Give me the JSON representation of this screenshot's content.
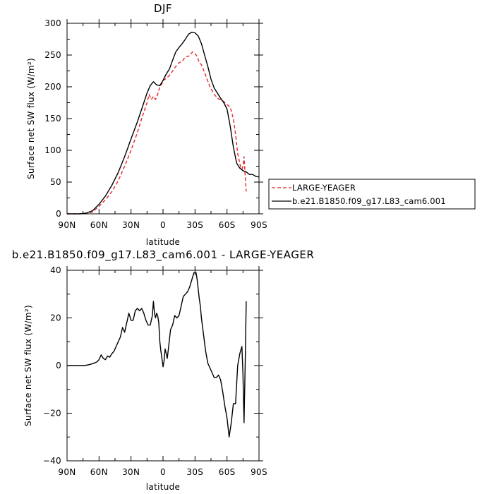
{
  "chart_data": [
    {
      "type": "line",
      "title": "DJF",
      "xlabel": "latitude",
      "ylabel": "Surface net SW flux (W/m²)",
      "xlim": [
        90,
        -90
      ],
      "ylim": [
        0,
        300
      ],
      "x_ticks": [
        90,
        60,
        30,
        0,
        -30,
        -60,
        -90
      ],
      "x_tick_labels": [
        "90N",
        "60N",
        "30N",
        "0",
        "30S",
        "60S",
        "90S"
      ],
      "y_ticks": [
        0,
        50,
        100,
        150,
        200,
        250,
        300
      ],
      "y_tick_labels": [
        "0",
        "50",
        "100",
        "150",
        "200",
        "250",
        "300"
      ],
      "legend": "right",
      "series": [
        {
          "name": "LARGE-YEAGER",
          "color": "#e8272a",
          "style": "dashed",
          "x": [
            90,
            84,
            78,
            72,
            66,
            60,
            54,
            48,
            42,
            36,
            30,
            24,
            20,
            18,
            15,
            13,
            11,
            9,
            7,
            5,
            3,
            1,
            0,
            -3,
            -6,
            -9,
            -12,
            -15,
            -18,
            -20,
            -22,
            -24,
            -26,
            -28,
            -30,
            -32,
            -34,
            -36,
            -40,
            -44,
            -48,
            -52,
            -56,
            -60,
            -63,
            -66,
            -68,
            -70,
            -72,
            -73,
            -74,
            -75,
            -76,
            -77,
            -78
          ],
          "y": [
            0,
            0,
            0,
            1,
            3,
            12,
            22,
            35,
            52,
            75,
            100,
            128,
            150,
            160,
            175,
            188,
            180,
            185,
            180,
            188,
            200,
            205,
            210,
            213,
            218,
            225,
            232,
            238,
            240,
            245,
            248,
            248,
            252,
            255,
            252,
            248,
            238,
            235,
            218,
            200,
            188,
            181,
            178,
            172,
            168,
            150,
            125,
            95,
            80,
            72,
            70,
            75,
            90,
            60,
            35
          ]
        },
        {
          "name": "b.e21.B1850.f09_g17.L83_cam6.001",
          "color": "#000000",
          "style": "solid",
          "x": [
            90,
            84,
            78,
            72,
            66,
            60,
            54,
            48,
            42,
            36,
            30,
            24,
            20,
            18,
            15,
            12,
            9,
            6,
            3,
            0,
            -3,
            -6,
            -9,
            -12,
            -15,
            -18,
            -21,
            -24,
            -27,
            -30,
            -33,
            -36,
            -39,
            -42,
            -45,
            -48,
            -51,
            -54,
            -57,
            -60,
            -63,
            -66,
            -69,
            -72,
            -75,
            -78,
            -81,
            -84,
            -87,
            -90
          ],
          "y": [
            0,
            0,
            0,
            1,
            5,
            15,
            28,
            45,
            65,
            90,
            118,
            145,
            165,
            175,
            190,
            202,
            208,
            203,
            202,
            210,
            220,
            228,
            242,
            255,
            262,
            268,
            275,
            283,
            286,
            285,
            280,
            268,
            250,
            232,
            212,
            198,
            190,
            182,
            175,
            165,
            138,
            105,
            80,
            72,
            68,
            66,
            62,
            62,
            59,
            58
          ]
        }
      ]
    },
    {
      "type": "line",
      "title": "b.e21.B1850.f09_g17.L83_cam6.001 - LARGE-YEAGER",
      "xlabel": "latitude",
      "ylabel": "Surface net SW flux (W/m²)",
      "xlim": [
        90,
        -90
      ],
      "ylim": [
        -40,
        40
      ],
      "x_ticks": [
        90,
        60,
        30,
        0,
        -30,
        -60,
        -90
      ],
      "x_tick_labels": [
        "90N",
        "60N",
        "30N",
        "0",
        "30S",
        "60S",
        "90S"
      ],
      "y_ticks": [
        -40,
        -20,
        0,
        20,
        40
      ],
      "y_tick_labels": [
        "−40",
        "−20",
        "0",
        "20",
        "40"
      ],
      "series": [
        {
          "color": "#000000",
          "style": "solid",
          "x": [
            90,
            84,
            78,
            74,
            70,
            66,
            62,
            60,
            58,
            56,
            54,
            52,
            50,
            48,
            46,
            44,
            42,
            40,
            38,
            36,
            34,
            32,
            30,
            28,
            26,
            24,
            22,
            20,
            18,
            16,
            14,
            12,
            11,
            10,
            9,
            8,
            7,
            6,
            5,
            4,
            3,
            2,
            1,
            0,
            -1,
            -2,
            -3,
            -4,
            -5,
            -7,
            -9,
            -11,
            -13,
            -15,
            -17,
            -19,
            -21,
            -23,
            -25,
            -27,
            -29,
            -31,
            -32,
            -33,
            -34,
            -35,
            -36,
            -38,
            -40,
            -42,
            -44,
            -46,
            -48,
            -50,
            -52,
            -54,
            -56,
            -58,
            -60,
            -62,
            -64,
            -66,
            -68,
            -70,
            -72,
            -74,
            -75,
            -76,
            -77,
            -78
          ],
          "y": [
            0,
            0,
            0,
            0,
            0.3,
            0.8,
            1.5,
            2.5,
            4.5,
            3,
            2.5,
            4,
            3.5,
            5,
            6,
            8,
            10,
            12,
            16,
            14,
            18,
            22,
            19,
            19,
            23,
            24,
            23,
            24,
            22,
            19,
            17,
            17,
            19,
            21,
            27,
            22,
            20,
            22,
            21,
            18,
            10,
            6,
            3,
            -0.5,
            2,
            7,
            5,
            3,
            7,
            15,
            17,
            21,
            20,
            21,
            25,
            29,
            30,
            31,
            33,
            36,
            39,
            39,
            36,
            32,
            28,
            25,
            20,
            13,
            6,
            1,
            -1,
            -3,
            -5,
            -5,
            -4,
            -6,
            -11,
            -17,
            -22,
            -30,
            -24,
            -16,
            -16,
            0,
            5,
            8,
            -4,
            -24,
            0,
            27
          ]
        }
      ]
    }
  ]
}
